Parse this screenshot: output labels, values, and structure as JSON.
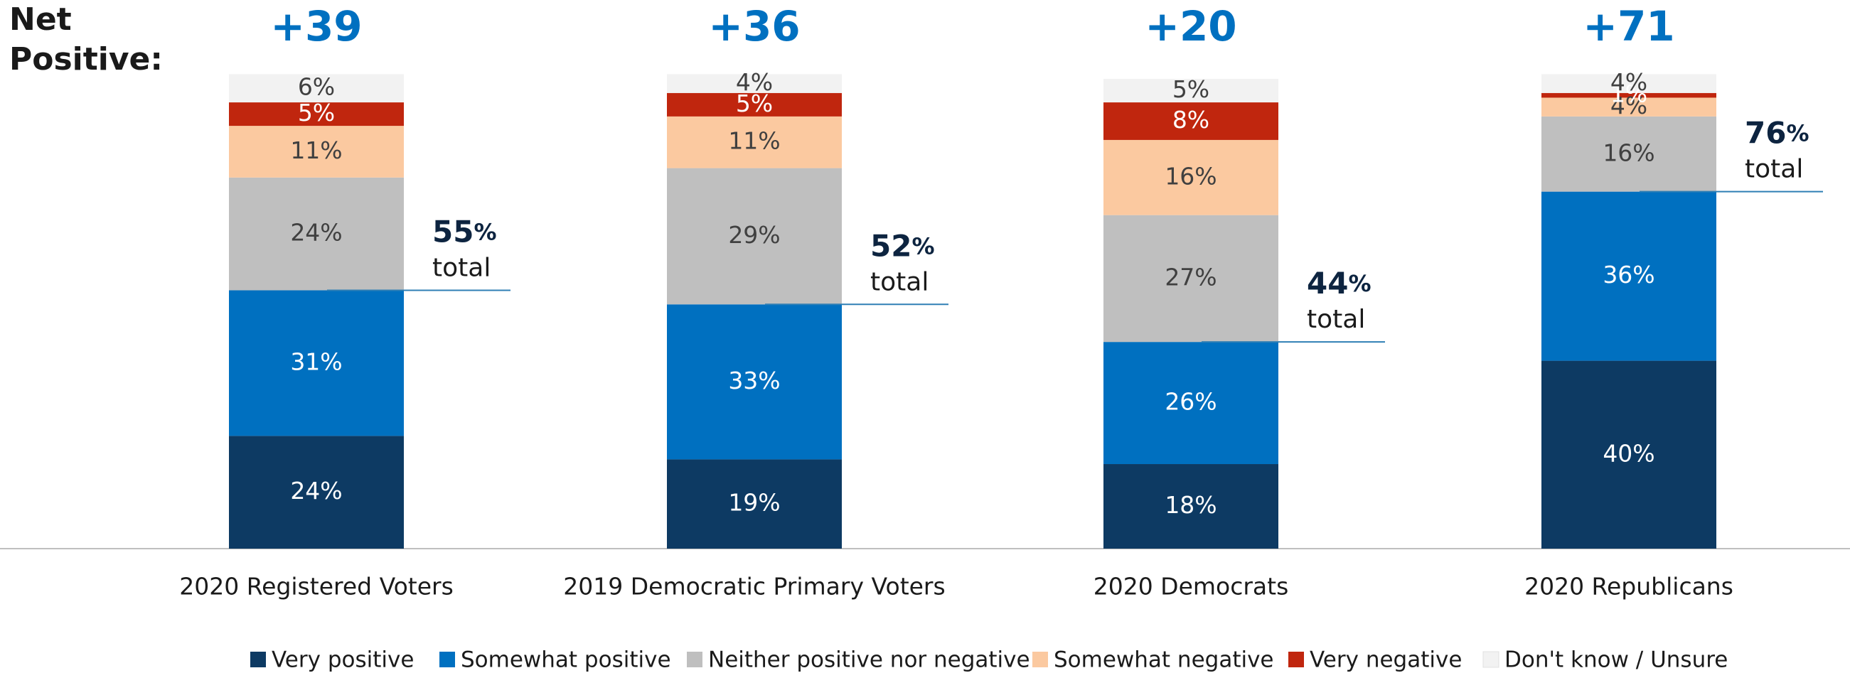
{
  "chart_data": {
    "type": "stacked-bar",
    "net_positive": {
      "label": "Net Positive:",
      "values": [
        39,
        36,
        20,
        71
      ],
      "value_labels": [
        "+39",
        "+36",
        "+20",
        "+71"
      ],
      "color": "#0070c0"
    },
    "categories": [
      "2020 Registered Voters",
      "2019 Democratic Primary Voters",
      "2020 Democrats",
      "2020 Republicans"
    ],
    "series": [
      {
        "name": "Very positive",
        "color": "#0d3a63",
        "values": [
          24,
          19,
          18,
          40
        ],
        "value_labels": [
          "24%",
          "19%",
          "18%",
          "40%"
        ]
      },
      {
        "name": "Somewhat positive",
        "color": "#0070c0",
        "values": [
          31,
          33,
          26,
          36
        ],
        "value_labels": [
          "31%",
          "33%",
          "26%",
          "36%"
        ]
      },
      {
        "name": "Neither positive nor negative",
        "color": "#bfbfbf",
        "values": [
          24,
          29,
          27,
          16
        ],
        "value_labels": [
          "24%",
          "29%",
          "27%",
          "16%"
        ]
      },
      {
        "name": "Somewhat negative",
        "color": "#fbc9a0",
        "values": [
          11,
          11,
          16,
          4
        ],
        "value_labels": [
          "11%",
          "11%",
          "16%",
          "4%"
        ]
      },
      {
        "name": "Very negative",
        "color": "#c0260e",
        "values": [
          5,
          5,
          8,
          1
        ],
        "value_labels": [
          "5%",
          "5%",
          "8%",
          "1%"
        ]
      },
      {
        "name": "Don't know / Unsure",
        "color": "#f2f2f2",
        "values": [
          6,
          4,
          5,
          4
        ],
        "value_labels": [
          "6%",
          "4%",
          "5%",
          "4%"
        ]
      }
    ],
    "totals": {
      "values": [
        55,
        52,
        44,
        76
      ],
      "unit": "%",
      "caption": "total"
    },
    "ylim": [
      0,
      100
    ]
  }
}
